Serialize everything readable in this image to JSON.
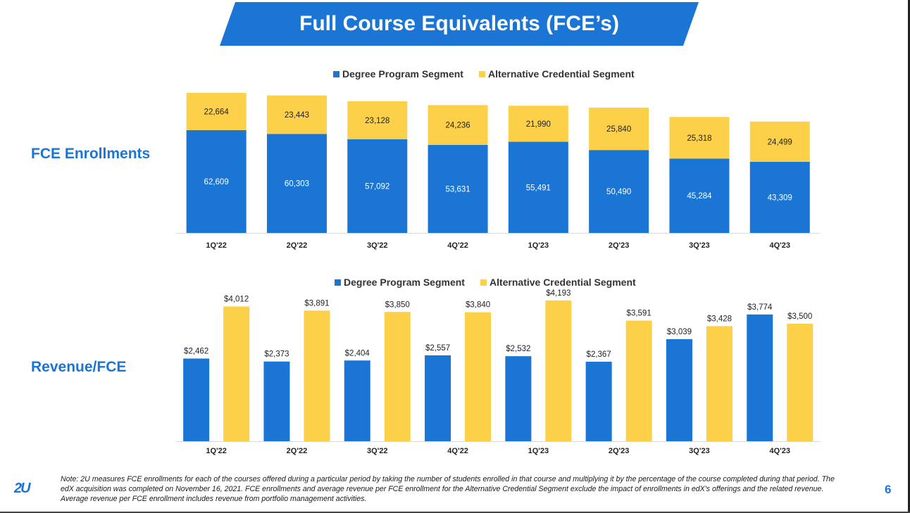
{
  "title": "Full Course Equivalents (FCE’s)",
  "colors": {
    "degree": "#1b75d4",
    "alternative": "#fdd04a",
    "accent": "#1b75d4"
  },
  "chart_data": [
    {
      "type": "bar",
      "stacked": true,
      "row_label": "FCE Enrollments",
      "categories": [
        "1Q'22",
        "2Q'22",
        "3Q'22",
        "4Q'22",
        "1Q'23",
        "2Q'23",
        "3Q'23",
        "4Q'23"
      ],
      "series": [
        {
          "name": "Degree Program Segment",
          "values": [
            62609,
            60303,
            57092,
            53631,
            55491,
            50490,
            45284,
            43309
          ],
          "labels": [
            "62,609",
            "60,303",
            "57,092",
            "53,631",
            "55,491",
            "50,490",
            "45,284",
            "43,309"
          ]
        },
        {
          "name": "Alternative Credential Segment",
          "values": [
            22664,
            23443,
            23128,
            24236,
            21990,
            25840,
            25318,
            24499
          ],
          "labels": [
            "22,664",
            "23,443",
            "23,128",
            "24,236",
            "21,990",
            "25,840",
            "25,318",
            "24,499"
          ]
        }
      ],
      "ylim": [
        0,
        87000
      ],
      "legend": "top"
    },
    {
      "type": "bar",
      "stacked": false,
      "row_label": "Revenue/FCE",
      "categories": [
        "1Q'22",
        "2Q'22",
        "3Q'22",
        "4Q'22",
        "1Q'23",
        "2Q'23",
        "3Q'23",
        "4Q'23"
      ],
      "series": [
        {
          "name": "Degree Program Segment",
          "values": [
            2462,
            2373,
            2404,
            2557,
            2532,
            2367,
            3039,
            3774
          ],
          "labels": [
            "$2,462",
            "$2,373",
            "$2,404",
            "$2,557",
            "$2,532",
            "$2,367",
            "$3,039",
            "$3,774"
          ]
        },
        {
          "name": "Alternative Credential Segment",
          "values": [
            4012,
            3891,
            3850,
            3840,
            4193,
            3591,
            3428,
            3500
          ],
          "labels": [
            "$4,012",
            "$3,891",
            "$3,850",
            "$3,840",
            "$4,193",
            "$3,591",
            "$3,428",
            "$3,500"
          ]
        }
      ],
      "ylim": [
        0,
        4400
      ],
      "legend": "top"
    }
  ],
  "note": "Note: 2U measures FCE enrollments for each of the courses offered during a particular period by taking the number of students enrolled in that course and multiplying it by the percentage of the course completed during that period. The edX acquisition was completed on November 16, 2021. FCE enrollments and average revenue per FCE enrollment for the Alternative Credential Segment exclude the impact of enrollments in edX's offerings and the related revenue.  Average revenue per FCE enrollment includes revenue from portfolio management activities.",
  "logo_text": "2U",
  "page_number": "6"
}
